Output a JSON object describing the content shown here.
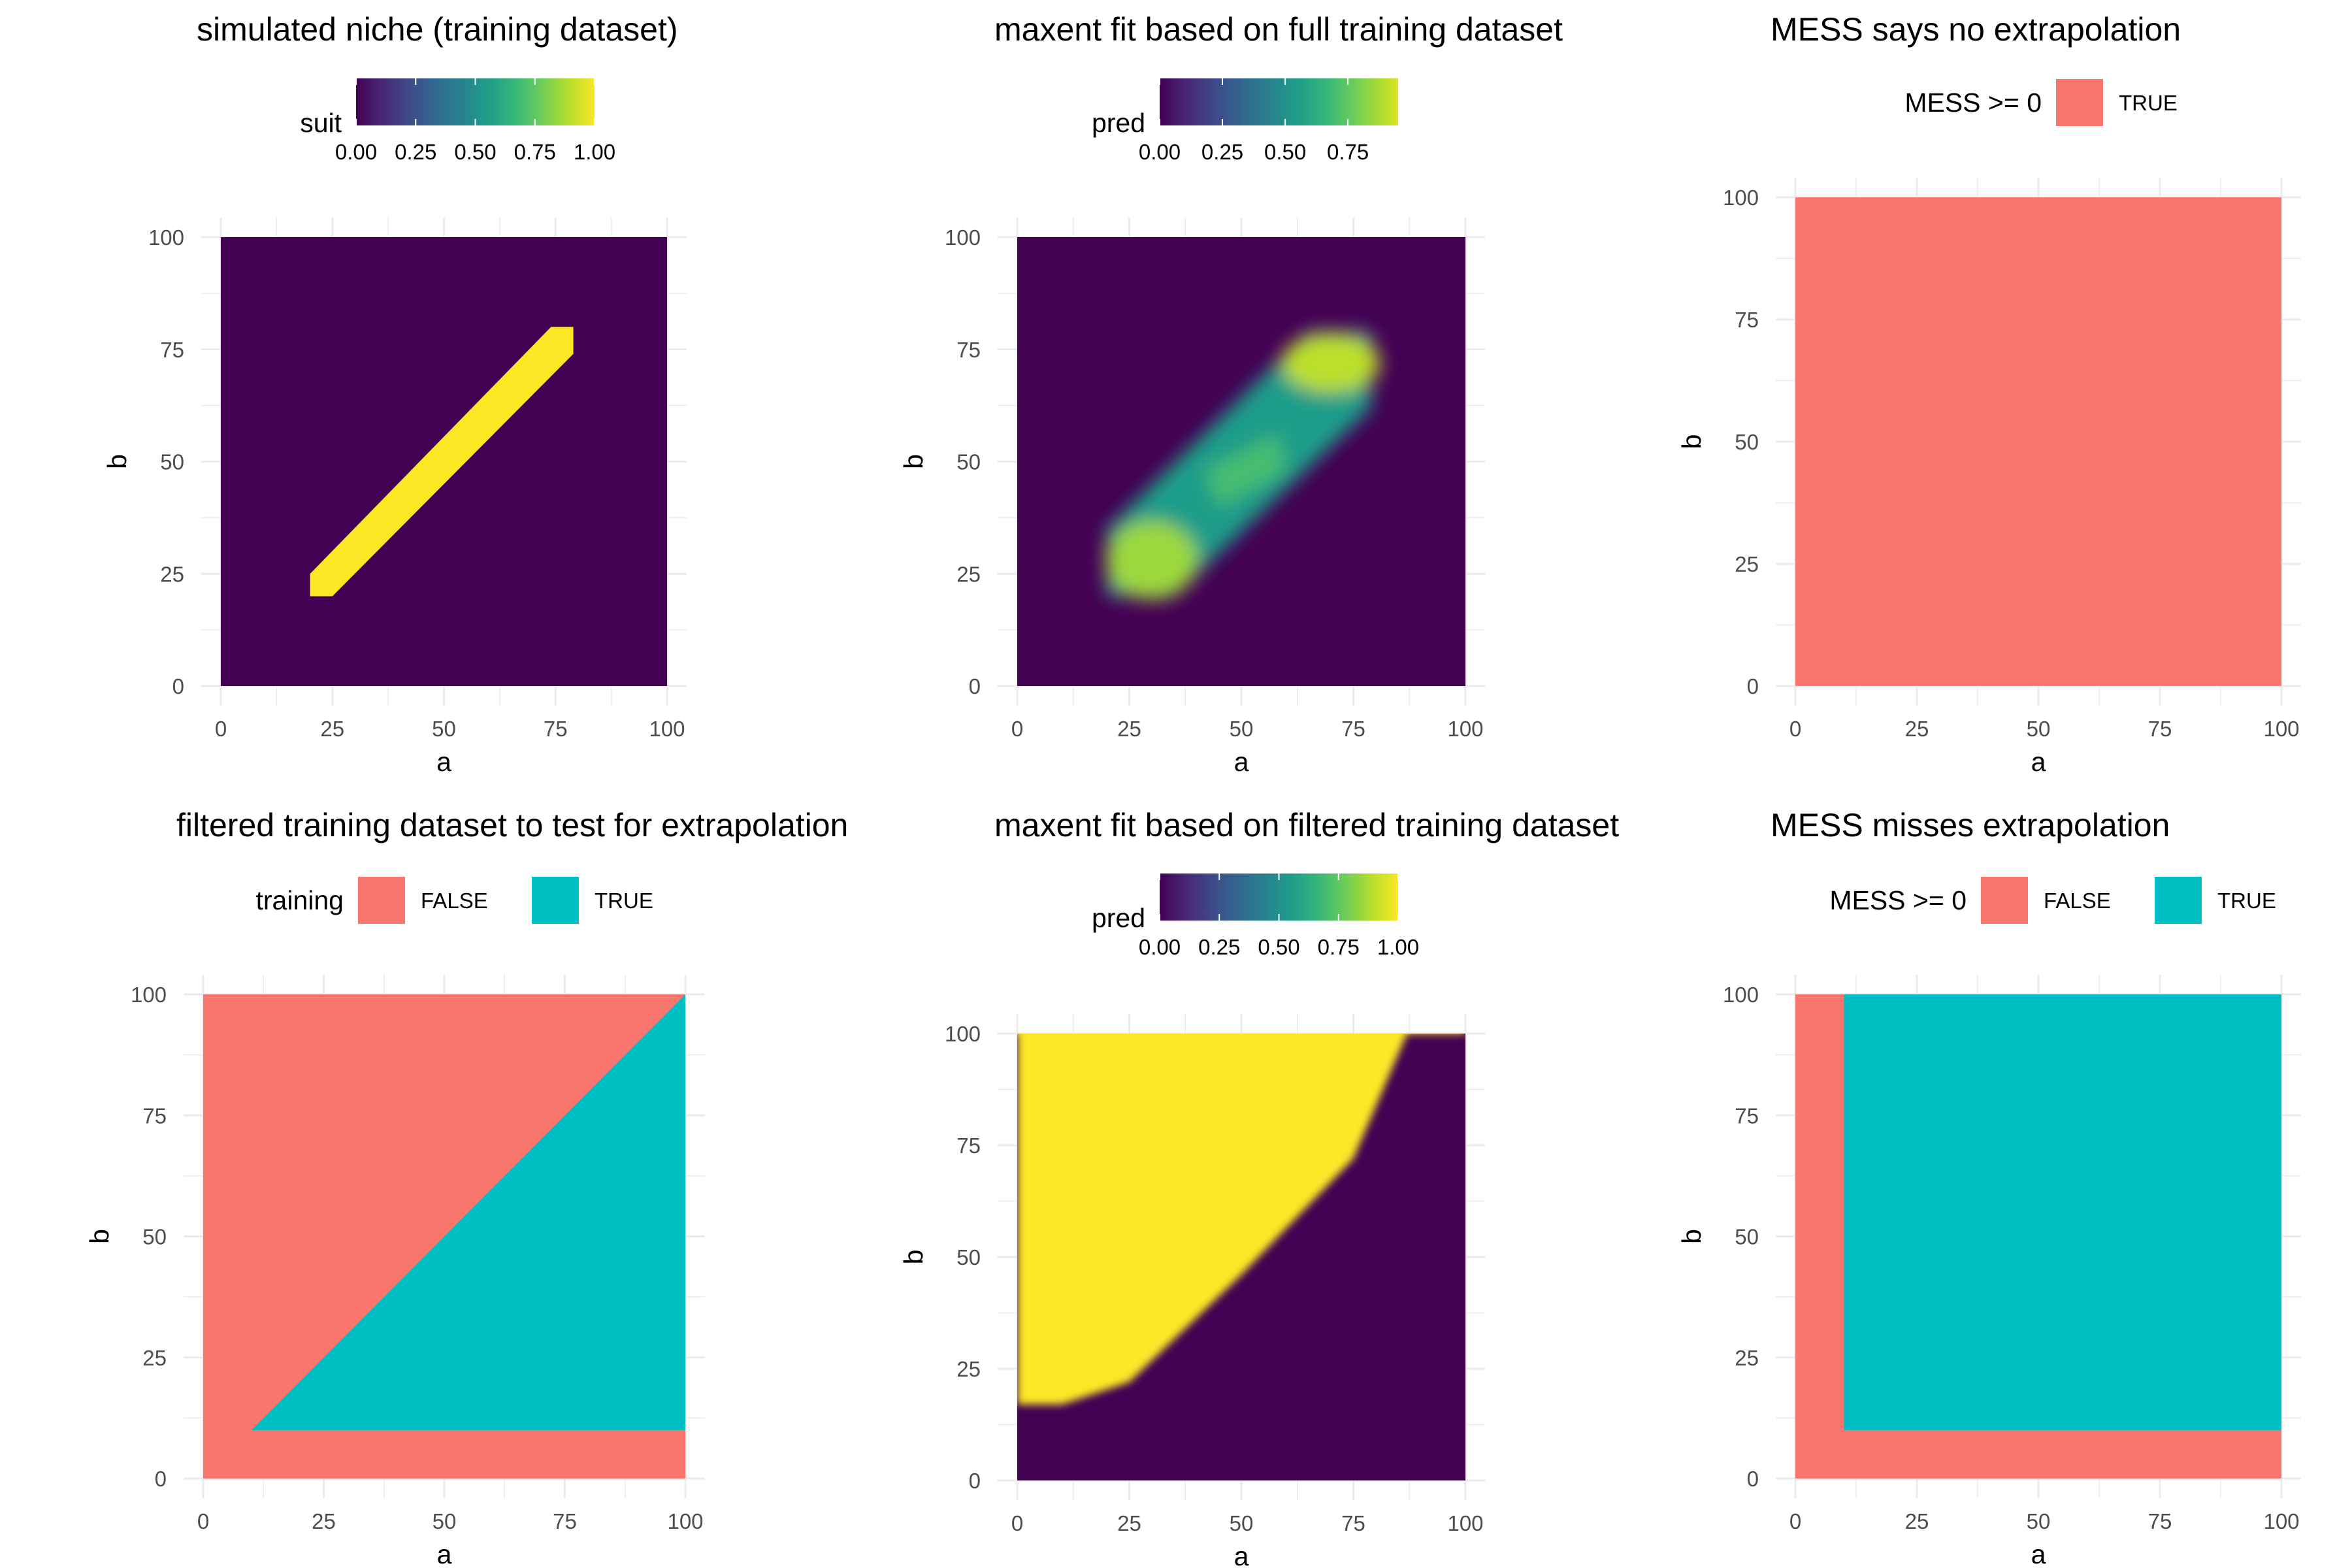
{
  "colors": {
    "false": "#F8766D",
    "true": "#00BFC4",
    "viridis": [
      "#440154",
      "#482878",
      "#3E4A89",
      "#31688E",
      "#26828E",
      "#1F9E89",
      "#35B779",
      "#6DCD59",
      "#B4DE2C",
      "#FDE725"
    ],
    "grid": "#EBEBEB",
    "tick_text": "#4D4D4D"
  },
  "chart_data": [
    {
      "type": "heatmap",
      "title": "simulated niche (training dataset)",
      "xlabel": "a",
      "ylabel": "b",
      "xlim": [
        0,
        100
      ],
      "ylim": [
        0,
        100
      ],
      "xticks": [
        "0",
        "25",
        "50",
        "75",
        "100"
      ],
      "yticks": [
        "0",
        "25",
        "50",
        "75",
        "100"
      ],
      "grid": true,
      "legend": {
        "kind": "colorbar",
        "title": "suit",
        "placement": "top",
        "range": [
          0,
          1
        ],
        "labels": [
          "0.00",
          "0.25",
          "0.50",
          "0.75",
          "1.00"
        ]
      },
      "surface": {
        "kind": "diagonal-band",
        "value_inside": 1.0,
        "value_outside": 0.0,
        "a_range": [
          20,
          79
        ],
        "band_half_width_b": 5,
        "description_values": {
          "band_start": [
            22,
            22
          ],
          "band_end": [
            77,
            77
          ]
        }
      }
    },
    {
      "type": "heatmap",
      "title": "maxent fit based on full training dataset",
      "xlabel": "a",
      "ylabel": "b",
      "xlim": [
        0,
        100
      ],
      "ylim": [
        0,
        100
      ],
      "xticks": [
        "0",
        "25",
        "50",
        "75",
        "100"
      ],
      "yticks": [
        "0",
        "25",
        "50",
        "75",
        "100"
      ],
      "grid": true,
      "legend": {
        "kind": "colorbar",
        "title": "pred",
        "placement": "top",
        "range": [
          0,
          0.95
        ],
        "labels": [
          "0.00",
          "0.25",
          "0.50",
          "0.75"
        ]
      },
      "surface": {
        "kind": "smooth-blob",
        "a_range": [
          20,
          79
        ],
        "b_range": [
          20,
          79
        ],
        "peak": 0.9,
        "low": 0.55
      }
    },
    {
      "type": "heatmap",
      "title": "MESS says no extrapolation",
      "xlabel": "a",
      "ylabel": "b",
      "xlim": [
        0,
        100
      ],
      "ylim": [
        0,
        100
      ],
      "xticks": [
        "0",
        "25",
        "50",
        "75",
        "100"
      ],
      "yticks": [
        "0",
        "25",
        "50",
        "75",
        "100"
      ],
      "grid": true,
      "legend": {
        "kind": "discrete",
        "title": "MESS >= 0",
        "placement": "top",
        "entries": [
          {
            "label": "TRUE",
            "color": "#F8766D"
          }
        ]
      },
      "regions": [
        {
          "label": "TRUE",
          "color": "#F8766D",
          "polygon": [
            [
              0,
              0
            ],
            [
              100,
              0
            ],
            [
              100,
              100
            ],
            [
              0,
              100
            ]
          ]
        }
      ]
    },
    {
      "type": "heatmap",
      "title": "filtered training dataset to test for extrapolation",
      "xlabel": "a",
      "ylabel": "b",
      "xlim": [
        0,
        100
      ],
      "ylim": [
        0,
        100
      ],
      "xticks": [
        "0",
        "25",
        "50",
        "75",
        "100"
      ],
      "yticks": [
        "0",
        "25",
        "50",
        "75",
        "100"
      ],
      "grid": true,
      "legend": {
        "kind": "discrete",
        "title": "training",
        "placement": "top",
        "entries": [
          {
            "label": "FALSE",
            "color": "#F8766D"
          },
          {
            "label": "TRUE",
            "color": "#00BFC4"
          }
        ]
      },
      "regions": [
        {
          "label": "FALSE",
          "color": "#F8766D",
          "polygon": [
            [
              0,
              0
            ],
            [
              100,
              0
            ],
            [
              100,
              100
            ],
            [
              0,
              100
            ]
          ]
        },
        {
          "label": "TRUE",
          "color": "#00BFC4",
          "polygon": [
            [
              10,
              10
            ],
            [
              100,
              10
            ],
            [
              100,
              100
            ]
          ]
        }
      ]
    },
    {
      "type": "heatmap",
      "title": "maxent fit based on filtered training dataset",
      "xlabel": "a",
      "ylabel": "b",
      "xlim": [
        0,
        100
      ],
      "ylim": [
        0,
        100
      ],
      "xticks": [
        "0",
        "25",
        "50",
        "75",
        "100"
      ],
      "yticks": [
        "0",
        "25",
        "50",
        "75",
        "100"
      ],
      "grid": true,
      "legend": {
        "kind": "colorbar",
        "title": "pred",
        "placement": "top",
        "range": [
          0,
          1
        ],
        "labels": [
          "0.00",
          "0.25",
          "0.50",
          "0.75",
          "1.00"
        ]
      },
      "surface": {
        "kind": "boundary",
        "value_high": 1.0,
        "value_low": 0.0,
        "boundary": [
          [
            0,
            17
          ],
          [
            10,
            17
          ],
          [
            25,
            22
          ],
          [
            50,
            46
          ],
          [
            75,
            72
          ],
          [
            87,
            100
          ]
        ]
      }
    },
    {
      "type": "heatmap",
      "title": "MESS misses extrapolation",
      "xlabel": "a",
      "ylabel": "b",
      "xlim": [
        0,
        100
      ],
      "ylim": [
        0,
        100
      ],
      "xticks": [
        "0",
        "25",
        "50",
        "75",
        "100"
      ],
      "yticks": [
        "0",
        "25",
        "50",
        "75",
        "100"
      ],
      "grid": true,
      "legend": {
        "kind": "discrete",
        "title": "MESS >= 0",
        "placement": "top",
        "entries": [
          {
            "label": "FALSE",
            "color": "#F8766D"
          },
          {
            "label": "TRUE",
            "color": "#00BFC4"
          }
        ]
      },
      "regions": [
        {
          "label": "FALSE",
          "color": "#F8766D",
          "polygon": [
            [
              0,
              0
            ],
            [
              100,
              0
            ],
            [
              100,
              100
            ],
            [
              0,
              100
            ]
          ]
        },
        {
          "label": "TRUE",
          "color": "#00BFC4",
          "polygon": [
            [
              10,
              10
            ],
            [
              100,
              10
            ],
            [
              100,
              100
            ],
            [
              10,
              100
            ]
          ]
        }
      ]
    }
  ]
}
